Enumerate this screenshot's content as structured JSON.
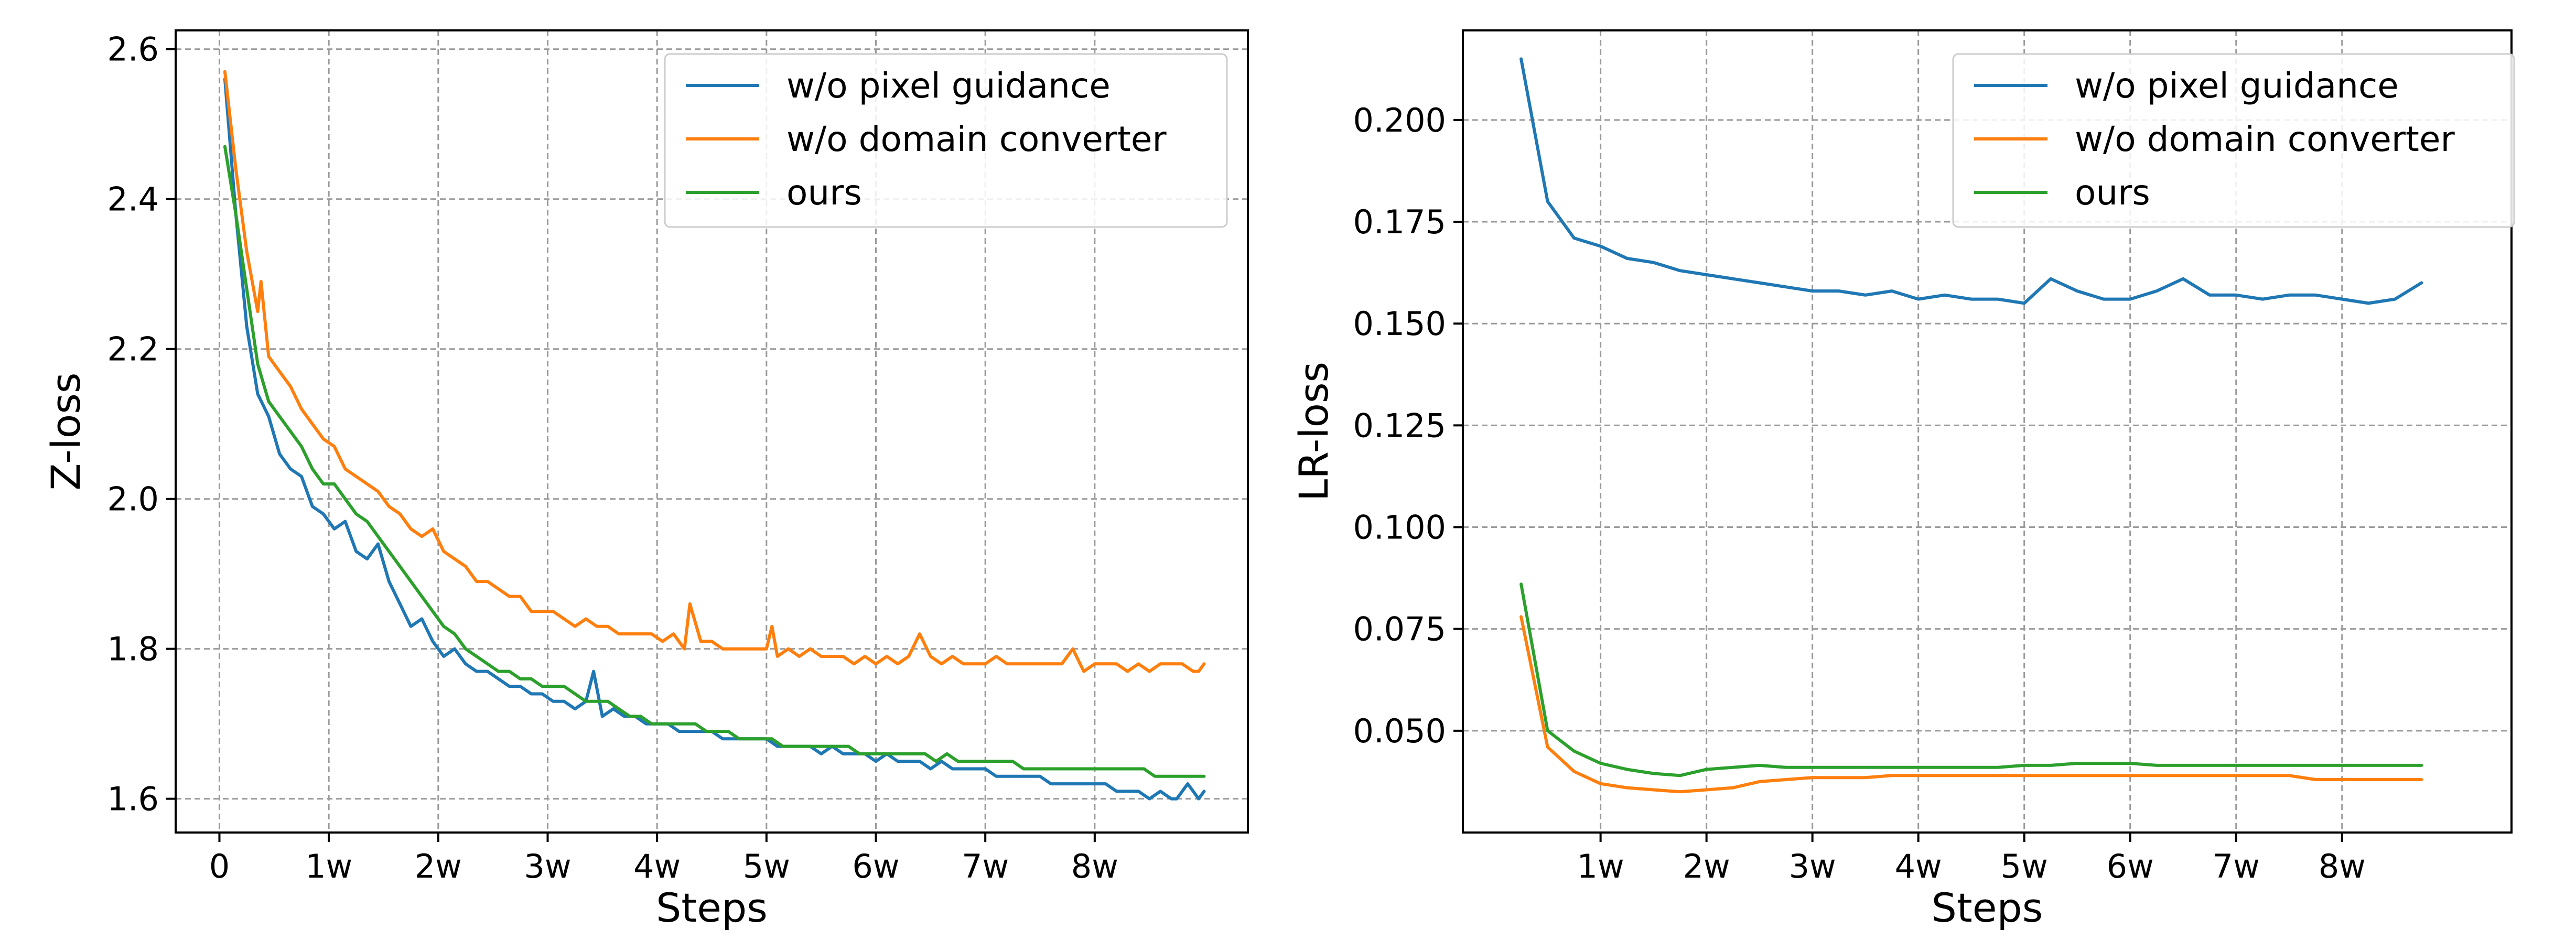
{
  "chart_data": [
    {
      "type": "line",
      "xlabel": "Steps",
      "ylabel": "Z-loss",
      "xticks": [
        {
          "value": 0,
          "label": "0"
        },
        {
          "value": 1,
          "label": "1w"
        },
        {
          "value": 2,
          "label": "2w"
        },
        {
          "value": 3,
          "label": "3w"
        },
        {
          "value": 4,
          "label": "4w"
        },
        {
          "value": 5,
          "label": "5w"
        },
        {
          "value": 6,
          "label": "6w"
        },
        {
          "value": 7,
          "label": "7w"
        },
        {
          "value": 8,
          "label": "8w"
        }
      ],
      "yticks": [
        {
          "value": 1.6,
          "label": "1.6"
        },
        {
          "value": 1.8,
          "label": "1.8"
        },
        {
          "value": 2.0,
          "label": "2.0"
        },
        {
          "value": 2.2,
          "label": "2.2"
        },
        {
          "value": 2.4,
          "label": "2.4"
        },
        {
          "value": 2.6,
          "label": "2.6"
        }
      ],
      "xlim": [
        -0.4,
        9.4
      ],
      "ylim": [
        1.555,
        2.625
      ],
      "grid": true,
      "legend_position": "top-right",
      "series": [
        {
          "name": "w/o pixel guidance",
          "color": "#1f77b4",
          "x": [
            0.05,
            0.15,
            0.25,
            0.35,
            0.45,
            0.55,
            0.65,
            0.75,
            0.85,
            0.95,
            1.05,
            1.15,
            1.25,
            1.35,
            1.45,
            1.55,
            1.65,
            1.75,
            1.85,
            1.95,
            2.05,
            2.15,
            2.25,
            2.35,
            2.45,
            2.55,
            2.65,
            2.75,
            2.85,
            2.95,
            3.05,
            3.15,
            3.25,
            3.35,
            3.42,
            3.5,
            3.6,
            3.7,
            3.8,
            3.9,
            4.0,
            4.1,
            4.2,
            4.3,
            4.4,
            4.5,
            4.6,
            4.7,
            4.8,
            4.9,
            5.0,
            5.1,
            5.2,
            5.3,
            5.4,
            5.5,
            5.6,
            5.7,
            5.8,
            5.9,
            6.0,
            6.1,
            6.2,
            6.3,
            6.4,
            6.5,
            6.6,
            6.7,
            6.8,
            6.9,
            7.0,
            7.1,
            7.2,
            7.3,
            7.4,
            7.5,
            7.6,
            7.7,
            7.8,
            7.9,
            8.0,
            8.1,
            8.2,
            8.3,
            8.4,
            8.5,
            8.6,
            8.7,
            8.75,
            8.8,
            8.85,
            8.9,
            8.95,
            9.0
          ],
          "values": [
            2.56,
            2.38,
            2.23,
            2.14,
            2.11,
            2.06,
            2.04,
            2.03,
            1.99,
            1.98,
            1.96,
            1.97,
            1.93,
            1.92,
            1.94,
            1.89,
            1.86,
            1.83,
            1.84,
            1.81,
            1.79,
            1.8,
            1.78,
            1.77,
            1.77,
            1.76,
            1.75,
            1.75,
            1.74,
            1.74,
            1.73,
            1.73,
            1.72,
            1.73,
            1.77,
            1.71,
            1.72,
            1.71,
            1.71,
            1.7,
            1.7,
            1.7,
            1.69,
            1.69,
            1.69,
            1.69,
            1.68,
            1.68,
            1.68,
            1.68,
            1.68,
            1.67,
            1.67,
            1.67,
            1.67,
            1.66,
            1.67,
            1.66,
            1.66,
            1.66,
            1.65,
            1.66,
            1.65,
            1.65,
            1.65,
            1.64,
            1.65,
            1.64,
            1.64,
            1.64,
            1.64,
            1.63,
            1.63,
            1.63,
            1.63,
            1.63,
            1.62,
            1.62,
            1.62,
            1.62,
            1.62,
            1.62,
            1.61,
            1.61,
            1.61,
            1.6,
            1.61,
            1.6,
            1.6,
            1.61,
            1.62,
            1.61,
            1.6,
            1.61
          ]
        },
        {
          "name": "w/o domain converter",
          "color": "#ff7f0e",
          "x": [
            0.05,
            0.15,
            0.25,
            0.35,
            0.38,
            0.45,
            0.55,
            0.65,
            0.75,
            0.85,
            0.95,
            1.05,
            1.15,
            1.25,
            1.35,
            1.45,
            1.55,
            1.65,
            1.75,
            1.85,
            1.95,
            2.05,
            2.15,
            2.25,
            2.35,
            2.45,
            2.55,
            2.65,
            2.75,
            2.85,
            2.95,
            3.05,
            3.15,
            3.25,
            3.35,
            3.45,
            3.55,
            3.65,
            3.75,
            3.85,
            3.95,
            4.05,
            4.15,
            4.25,
            4.3,
            4.4,
            4.5,
            4.6,
            4.7,
            4.8,
            4.9,
            5.0,
            5.05,
            5.1,
            5.2,
            5.3,
            5.4,
            5.5,
            5.6,
            5.7,
            5.8,
            5.9,
            6.0,
            6.1,
            6.2,
            6.3,
            6.4,
            6.5,
            6.6,
            6.7,
            6.8,
            6.9,
            7.0,
            7.1,
            7.2,
            7.3,
            7.4,
            7.5,
            7.6,
            7.7,
            7.8,
            7.9,
            8.0,
            8.1,
            8.2,
            8.3,
            8.4,
            8.5,
            8.6,
            8.7,
            8.8,
            8.9,
            8.95,
            9.0
          ],
          "values": [
            2.57,
            2.44,
            2.33,
            2.25,
            2.29,
            2.19,
            2.17,
            2.15,
            2.12,
            2.1,
            2.08,
            2.07,
            2.04,
            2.03,
            2.02,
            2.01,
            1.99,
            1.98,
            1.96,
            1.95,
            1.96,
            1.93,
            1.92,
            1.91,
            1.89,
            1.89,
            1.88,
            1.87,
            1.87,
            1.85,
            1.85,
            1.85,
            1.84,
            1.83,
            1.84,
            1.83,
            1.83,
            1.82,
            1.82,
            1.82,
            1.82,
            1.81,
            1.82,
            1.8,
            1.86,
            1.81,
            1.81,
            1.8,
            1.8,
            1.8,
            1.8,
            1.8,
            1.83,
            1.79,
            1.8,
            1.79,
            1.8,
            1.79,
            1.79,
            1.79,
            1.78,
            1.79,
            1.78,
            1.79,
            1.78,
            1.79,
            1.82,
            1.79,
            1.78,
            1.79,
            1.78,
            1.78,
            1.78,
            1.79,
            1.78,
            1.78,
            1.78,
            1.78,
            1.78,
            1.78,
            1.8,
            1.77,
            1.78,
            1.78,
            1.78,
            1.77,
            1.78,
            1.77,
            1.78,
            1.78,
            1.78,
            1.77,
            1.77,
            1.78
          ]
        },
        {
          "name": "ours",
          "color": "#2ca02c",
          "x": [
            0.05,
            0.15,
            0.25,
            0.35,
            0.45,
            0.55,
            0.65,
            0.75,
            0.85,
            0.95,
            1.05,
            1.15,
            1.25,
            1.35,
            1.45,
            1.55,
            1.65,
            1.75,
            1.85,
            1.95,
            2.05,
            2.15,
            2.25,
            2.35,
            2.45,
            2.55,
            2.65,
            2.75,
            2.85,
            2.95,
            3.05,
            3.15,
            3.25,
            3.35,
            3.45,
            3.55,
            3.65,
            3.75,
            3.85,
            3.95,
            4.05,
            4.15,
            4.25,
            4.35,
            4.45,
            4.55,
            4.65,
            4.75,
            4.85,
            4.95,
            5.05,
            5.15,
            5.25,
            5.35,
            5.45,
            5.55,
            5.65,
            5.75,
            5.85,
            5.95,
            6.05,
            6.15,
            6.25,
            6.35,
            6.45,
            6.55,
            6.65,
            6.75,
            6.85,
            6.95,
            7.05,
            7.15,
            7.25,
            7.35,
            7.45,
            7.55,
            7.65,
            7.75,
            7.85,
            7.95,
            8.05,
            8.15,
            8.25,
            8.35,
            8.45,
            8.55,
            8.65,
            8.75,
            8.85,
            8.95,
            9.0
          ],
          "values": [
            2.47,
            2.38,
            2.28,
            2.18,
            2.13,
            2.11,
            2.09,
            2.07,
            2.04,
            2.02,
            2.02,
            2.0,
            1.98,
            1.97,
            1.95,
            1.93,
            1.91,
            1.89,
            1.87,
            1.85,
            1.83,
            1.82,
            1.8,
            1.79,
            1.78,
            1.77,
            1.77,
            1.76,
            1.76,
            1.75,
            1.75,
            1.75,
            1.74,
            1.73,
            1.73,
            1.73,
            1.72,
            1.71,
            1.71,
            1.7,
            1.7,
            1.7,
            1.7,
            1.7,
            1.69,
            1.69,
            1.69,
            1.68,
            1.68,
            1.68,
            1.68,
            1.67,
            1.67,
            1.67,
            1.67,
            1.67,
            1.67,
            1.67,
            1.66,
            1.66,
            1.66,
            1.66,
            1.66,
            1.66,
            1.66,
            1.65,
            1.66,
            1.65,
            1.65,
            1.65,
            1.65,
            1.65,
            1.65,
            1.64,
            1.64,
            1.64,
            1.64,
            1.64,
            1.64,
            1.64,
            1.64,
            1.64,
            1.64,
            1.64,
            1.64,
            1.63,
            1.63,
            1.63,
            1.63,
            1.63,
            1.63
          ]
        }
      ]
    },
    {
      "type": "line",
      "xlabel": "Steps",
      "ylabel": "LR-loss",
      "xticks": [
        {
          "value": 1,
          "label": "1w"
        },
        {
          "value": 2,
          "label": "2w"
        },
        {
          "value": 3,
          "label": "3w"
        },
        {
          "value": 4,
          "label": "4w"
        },
        {
          "value": 5,
          "label": "5w"
        },
        {
          "value": 6,
          "label": "6w"
        },
        {
          "value": 7,
          "label": "7w"
        },
        {
          "value": 8,
          "label": "8w"
        }
      ],
      "yticks": [
        {
          "value": 0.05,
          "label": "0.050"
        },
        {
          "value": 0.075,
          "label": "0.075"
        },
        {
          "value": 0.1,
          "label": "0.100"
        },
        {
          "value": 0.125,
          "label": "0.125"
        },
        {
          "value": 0.15,
          "label": "0.150"
        },
        {
          "value": 0.175,
          "label": "0.175"
        },
        {
          "value": 0.2,
          "label": "0.200"
        }
      ],
      "xlim": [
        -0.3,
        9.6
      ],
      "ylim": [
        0.025,
        0.222
      ],
      "grid": true,
      "legend_position": "top-right",
      "series": [
        {
          "name": "w/o pixel guidance",
          "color": "#1f77b4",
          "x": [
            0.25,
            0.5,
            0.75,
            1.0,
            1.25,
            1.5,
            1.75,
            2.0,
            2.25,
            2.5,
            2.75,
            3.0,
            3.25,
            3.5,
            3.75,
            4.0,
            4.25,
            4.5,
            4.75,
            5.0,
            5.25,
            5.5,
            5.75,
            6.0,
            6.25,
            6.5,
            6.75,
            7.0,
            7.25,
            7.5,
            7.75,
            8.0,
            8.25,
            8.5,
            8.75
          ],
          "values": [
            0.215,
            0.18,
            0.171,
            0.169,
            0.166,
            0.165,
            0.163,
            0.162,
            0.161,
            0.16,
            0.159,
            0.158,
            0.158,
            0.157,
            0.158,
            0.156,
            0.157,
            0.156,
            0.156,
            0.155,
            0.161,
            0.158,
            0.156,
            0.156,
            0.158,
            0.161,
            0.157,
            0.157,
            0.156,
            0.157,
            0.157,
            0.156,
            0.155,
            0.156,
            0.16
          ]
        },
        {
          "name": "w/o domain converter",
          "color": "#ff7f0e",
          "x": [
            0.25,
            0.5,
            0.75,
            1.0,
            1.25,
            1.5,
            1.75,
            2.0,
            2.25,
            2.5,
            2.75,
            3.0,
            3.25,
            3.5,
            3.75,
            4.0,
            4.25,
            4.5,
            4.75,
            5.0,
            5.25,
            5.5,
            5.75,
            6.0,
            6.25,
            6.5,
            6.75,
            7.0,
            7.25,
            7.5,
            7.75,
            8.0,
            8.25,
            8.5,
            8.75
          ],
          "values": [
            0.078,
            0.046,
            0.04,
            0.037,
            0.036,
            0.0355,
            0.035,
            0.0355,
            0.036,
            0.0375,
            0.038,
            0.0385,
            0.0385,
            0.0385,
            0.039,
            0.039,
            0.039,
            0.039,
            0.039,
            0.039,
            0.039,
            0.039,
            0.039,
            0.039,
            0.039,
            0.039,
            0.039,
            0.039,
            0.039,
            0.039,
            0.038,
            0.038,
            0.038,
            0.038,
            0.038
          ]
        },
        {
          "name": "ours",
          "color": "#2ca02c",
          "x": [
            0.25,
            0.5,
            0.75,
            1.0,
            1.25,
            1.5,
            1.75,
            2.0,
            2.25,
            2.5,
            2.75,
            3.0,
            3.25,
            3.5,
            3.75,
            4.0,
            4.25,
            4.5,
            4.75,
            5.0,
            5.25,
            5.5,
            5.75,
            6.0,
            6.25,
            6.5,
            6.75,
            7.0,
            7.25,
            7.5,
            7.75,
            8.0,
            8.25,
            8.5,
            8.75
          ],
          "values": [
            0.086,
            0.05,
            0.045,
            0.042,
            0.0405,
            0.0395,
            0.039,
            0.0405,
            0.041,
            0.0415,
            0.041,
            0.041,
            0.041,
            0.041,
            0.041,
            0.041,
            0.041,
            0.041,
            0.041,
            0.0415,
            0.0415,
            0.042,
            0.042,
            0.042,
            0.0415,
            0.0415,
            0.0415,
            0.0415,
            0.0415,
            0.0415,
            0.0415,
            0.0415,
            0.0415,
            0.0415,
            0.0415
          ]
        }
      ]
    }
  ]
}
